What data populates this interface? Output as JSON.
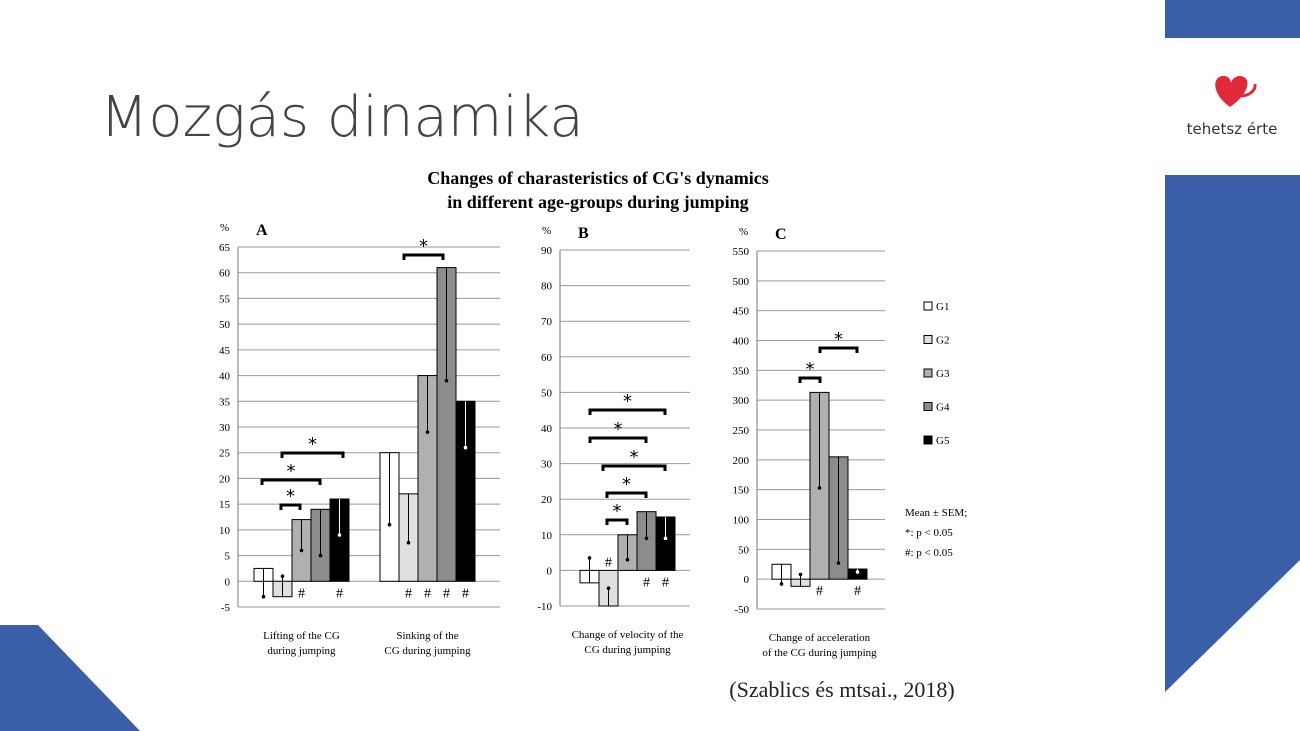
{
  "slide": {
    "title": "Mozgás dinamika",
    "citation": "(Szablics és mtsai., 2018)",
    "logo_text": "tehetsz érte"
  },
  "figure": {
    "title": [
      "Changes of charasteristics of CG's dynamics",
      "in different age-groups during jumping"
    ]
  },
  "chart_data": [
    {
      "type": "bar",
      "panel": "A",
      "y_label": "%",
      "categories": [
        [
          "Lifting of the CG",
          "during  jumping"
        ],
        [
          "Sinking  of the",
          "CG during  jumping"
        ]
      ],
      "ylim": [
        -5,
        65
      ],
      "yticks": [
        -5,
        0,
        5,
        10,
        15,
        20,
        25,
        30,
        35,
        40,
        45,
        50,
        55,
        60,
        65
      ],
      "grid": true,
      "series": [
        {
          "color": "#ffffff",
          "values": [
            2.5,
            25
          ],
          "errors": [
            5.5,
            14
          ],
          "markers": [
            null,
            null
          ]
        },
        {
          "color": "#e0e0e0",
          "values": [
            -3,
            17
          ],
          "errors": [
            4,
            9.5
          ],
          "markers": [
            null,
            "#"
          ]
        },
        {
          "color": "#b0b0b0",
          "values": [
            12,
            40
          ],
          "errors": [
            6,
            11
          ],
          "markers": [
            "#",
            "#"
          ]
        },
        {
          "color": "#8c8c8c",
          "values": [
            14,
            61
          ],
          "errors": [
            9,
            22
          ],
          "markers": [
            null,
            "#"
          ]
        },
        {
          "color": "#000000",
          "values": [
            16,
            35
          ],
          "errors": [
            7,
            9
          ],
          "markers": [
            "#",
            "#"
          ]
        }
      ],
      "annotations": [
        "*",
        "*",
        "*",
        "*"
      ]
    },
    {
      "type": "bar",
      "panel": "B",
      "y_label": "%",
      "categories": [
        [
          "Change of velocity  of the",
          "CG during  jumping"
        ]
      ],
      "ylim": [
        -10,
        90
      ],
      "yticks": [
        -10,
        0,
        10,
        20,
        30,
        40,
        50,
        60,
        70,
        80,
        90
      ],
      "grid": true,
      "series": [
        {
          "color": "#ffffff",
          "values": [
            -3.5
          ],
          "errors": [
            7
          ],
          "markers": [
            null
          ]
        },
        {
          "color": "#e0e0e0",
          "values": [
            -10
          ],
          "errors": [
            5
          ],
          "markers": [
            "#"
          ]
        },
        {
          "color": "#b0b0b0",
          "values": [
            10
          ],
          "errors": [
            7
          ],
          "markers": [
            null
          ]
        },
        {
          "color": "#8c8c8c",
          "values": [
            16.5
          ],
          "errors": [
            7.5
          ],
          "markers": [
            "#"
          ]
        },
        {
          "color": "#000000",
          "values": [
            15
          ],
          "errors": [
            6
          ],
          "markers": [
            "#"
          ]
        }
      ],
      "annotations": [
        "*",
        "*",
        "*",
        "*",
        "*"
      ]
    },
    {
      "type": "bar",
      "panel": "C",
      "y_label": "%",
      "categories": [
        [
          "Change  of  acceleration",
          "of the CG during  jumping"
        ]
      ],
      "ylim": [
        -50,
        550
      ],
      "yticks": [
        -50,
        0,
        50,
        100,
        150,
        200,
        250,
        300,
        350,
        400,
        450,
        500,
        550
      ],
      "grid": true,
      "series": [
        {
          "name": "G1",
          "color": "#ffffff",
          "values": [
            25
          ],
          "errors": [
            33
          ],
          "markers": [
            null
          ]
        },
        {
          "name": "G2",
          "color": "#e0e0e0",
          "values": [
            -12
          ],
          "errors": [
            20
          ],
          "markers": [
            null
          ]
        },
        {
          "name": "G3",
          "color": "#b0b0b0",
          "values": [
            313
          ],
          "errors": [
            160
          ],
          "markers": [
            "#"
          ]
        },
        {
          "name": "G4",
          "color": "#8c8c8c",
          "values": [
            205
          ],
          "errors": [
            178
          ],
          "markers": [
            null
          ]
        },
        {
          "name": "G5",
          "color": "#000000",
          "values": [
            17
          ],
          "errors": [
            5
          ],
          "markers": [
            "#"
          ]
        }
      ],
      "annotations": [
        "*",
        "*"
      ],
      "notes": [
        "Mean ± SEM;",
        "*:  p < 0.05",
        "#:  p < 0.05"
      ]
    }
  ]
}
